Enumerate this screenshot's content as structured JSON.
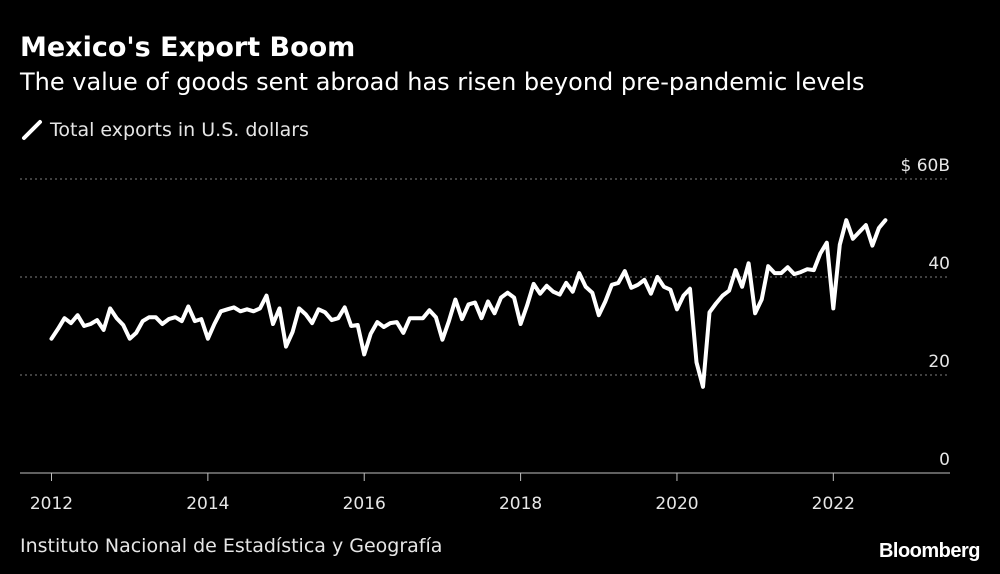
{
  "header": {
    "title": "Mexico's Export Boom",
    "subtitle": "The value of goods sent abroad has risen beyond pre-pandemic levels"
  },
  "legend": {
    "label": "Total exports in U.S. dollars"
  },
  "footer": {
    "source": "Instituto Nacional de Estadística y Geografía",
    "brand": "Bloomberg"
  },
  "colors": {
    "background": "#000000",
    "line": "#ffffff",
    "grid": "#808080",
    "text": "#e6e6e6"
  },
  "chart_data": {
    "type": "line",
    "title": "Mexico's Export Boom",
    "subtitle": "The value of goods sent abroad has risen beyond pre-pandemic levels",
    "xlabel": "",
    "ylabel": "",
    "y_unit_prefix": "$",
    "y_unit_suffix": "B",
    "ylim": [
      0,
      60
    ],
    "xlim": [
      "2012-01",
      "2022-12"
    ],
    "grid": true,
    "legend_position": "top-left",
    "y_ticks": [
      {
        "value": 60,
        "label": "$ 60B"
      },
      {
        "value": 40,
        "label": "40"
      },
      {
        "value": 20,
        "label": "20"
      },
      {
        "value": 0,
        "label": "0"
      }
    ],
    "x_ticks": [
      {
        "value": "2012-01",
        "label": "2012"
      },
      {
        "value": "2014-01",
        "label": "2014"
      },
      {
        "value": "2016-01",
        "label": "2016"
      },
      {
        "value": "2018-01",
        "label": "2018"
      },
      {
        "value": "2020-01",
        "label": "2020"
      },
      {
        "value": "2022-01",
        "label": "2022"
      }
    ],
    "series": [
      {
        "name": "Total exports in U.S. dollars",
        "x": [
          "2012-01",
          "2012-02",
          "2012-03",
          "2012-04",
          "2012-05",
          "2012-06",
          "2012-07",
          "2012-08",
          "2012-09",
          "2012-10",
          "2012-11",
          "2012-12",
          "2013-01",
          "2013-02",
          "2013-03",
          "2013-04",
          "2013-05",
          "2013-06",
          "2013-07",
          "2013-08",
          "2013-09",
          "2013-10",
          "2013-11",
          "2013-12",
          "2014-01",
          "2014-02",
          "2014-03",
          "2014-04",
          "2014-05",
          "2014-06",
          "2014-07",
          "2014-08",
          "2014-09",
          "2014-10",
          "2014-11",
          "2014-12",
          "2015-01",
          "2015-02",
          "2015-03",
          "2015-04",
          "2015-05",
          "2015-06",
          "2015-07",
          "2015-08",
          "2015-09",
          "2015-10",
          "2015-11",
          "2015-12",
          "2016-01",
          "2016-02",
          "2016-03",
          "2016-04",
          "2016-05",
          "2016-06",
          "2016-07",
          "2016-08",
          "2016-09",
          "2016-10",
          "2016-11",
          "2016-12",
          "2017-01",
          "2017-02",
          "2017-03",
          "2017-04",
          "2017-05",
          "2017-06",
          "2017-07",
          "2017-08",
          "2017-09",
          "2017-10",
          "2017-11",
          "2017-12",
          "2018-01",
          "2018-02",
          "2018-03",
          "2018-04",
          "2018-05",
          "2018-06",
          "2018-07",
          "2018-08",
          "2018-09",
          "2018-10",
          "2018-11",
          "2018-12",
          "2019-01",
          "2019-02",
          "2019-03",
          "2019-04",
          "2019-05",
          "2019-06",
          "2019-07",
          "2019-08",
          "2019-09",
          "2019-10",
          "2019-11",
          "2019-12",
          "2020-01",
          "2020-02",
          "2020-03",
          "2020-04",
          "2020-05",
          "2020-06",
          "2020-07",
          "2020-08",
          "2020-09",
          "2020-10",
          "2020-11",
          "2020-12",
          "2021-01",
          "2021-02",
          "2021-03",
          "2021-04",
          "2021-05",
          "2021-06",
          "2021-07",
          "2021-08",
          "2021-09",
          "2021-10",
          "2021-11",
          "2021-12",
          "2022-01",
          "2022-02",
          "2022-03",
          "2022-04",
          "2022-05",
          "2022-06",
          "2022-07",
          "2022-08",
          "2022-09"
        ],
        "values": [
          27.4,
          29.4,
          31.6,
          30.6,
          32.2,
          30.0,
          30.4,
          31.2,
          29.2,
          33.6,
          31.6,
          30.2,
          27.4,
          28.6,
          31.0,
          31.8,
          31.8,
          30.4,
          31.4,
          31.8,
          31.0,
          34.0,
          31.0,
          31.4,
          27.4,
          30.4,
          33.0,
          33.4,
          33.8,
          33.0,
          33.4,
          33.0,
          33.6,
          36.2,
          30.4,
          33.6,
          25.8,
          28.8,
          33.6,
          32.4,
          30.6,
          33.4,
          32.8,
          31.2,
          31.6,
          33.8,
          30.0,
          30.2,
          24.2,
          28.4,
          30.8,
          29.8,
          30.6,
          30.8,
          28.6,
          31.6,
          31.6,
          31.6,
          33.2,
          31.8,
          27.2,
          31.0,
          35.4,
          31.4,
          34.4,
          34.8,
          31.6,
          35.0,
          32.6,
          35.8,
          36.8,
          35.8,
          30.4,
          34.2,
          38.6,
          36.6,
          38.2,
          37.0,
          36.4,
          38.8,
          37.0,
          40.8,
          38.0,
          36.8,
          32.2,
          35.0,
          38.4,
          38.8,
          41.2,
          37.8,
          38.4,
          39.4,
          36.6,
          40.0,
          38.0,
          37.4,
          33.4,
          36.2,
          37.6,
          22.6,
          17.6,
          32.8,
          34.6,
          36.2,
          37.2,
          41.4,
          38.0,
          42.8,
          32.6,
          35.4,
          42.2,
          40.8,
          40.8,
          42.0,
          40.6,
          41.0,
          41.6,
          41.4,
          44.8,
          47.0,
          33.6,
          46.6,
          51.6,
          47.8,
          49.2,
          50.6,
          46.4,
          50.0,
          51.6
        ]
      }
    ]
  }
}
